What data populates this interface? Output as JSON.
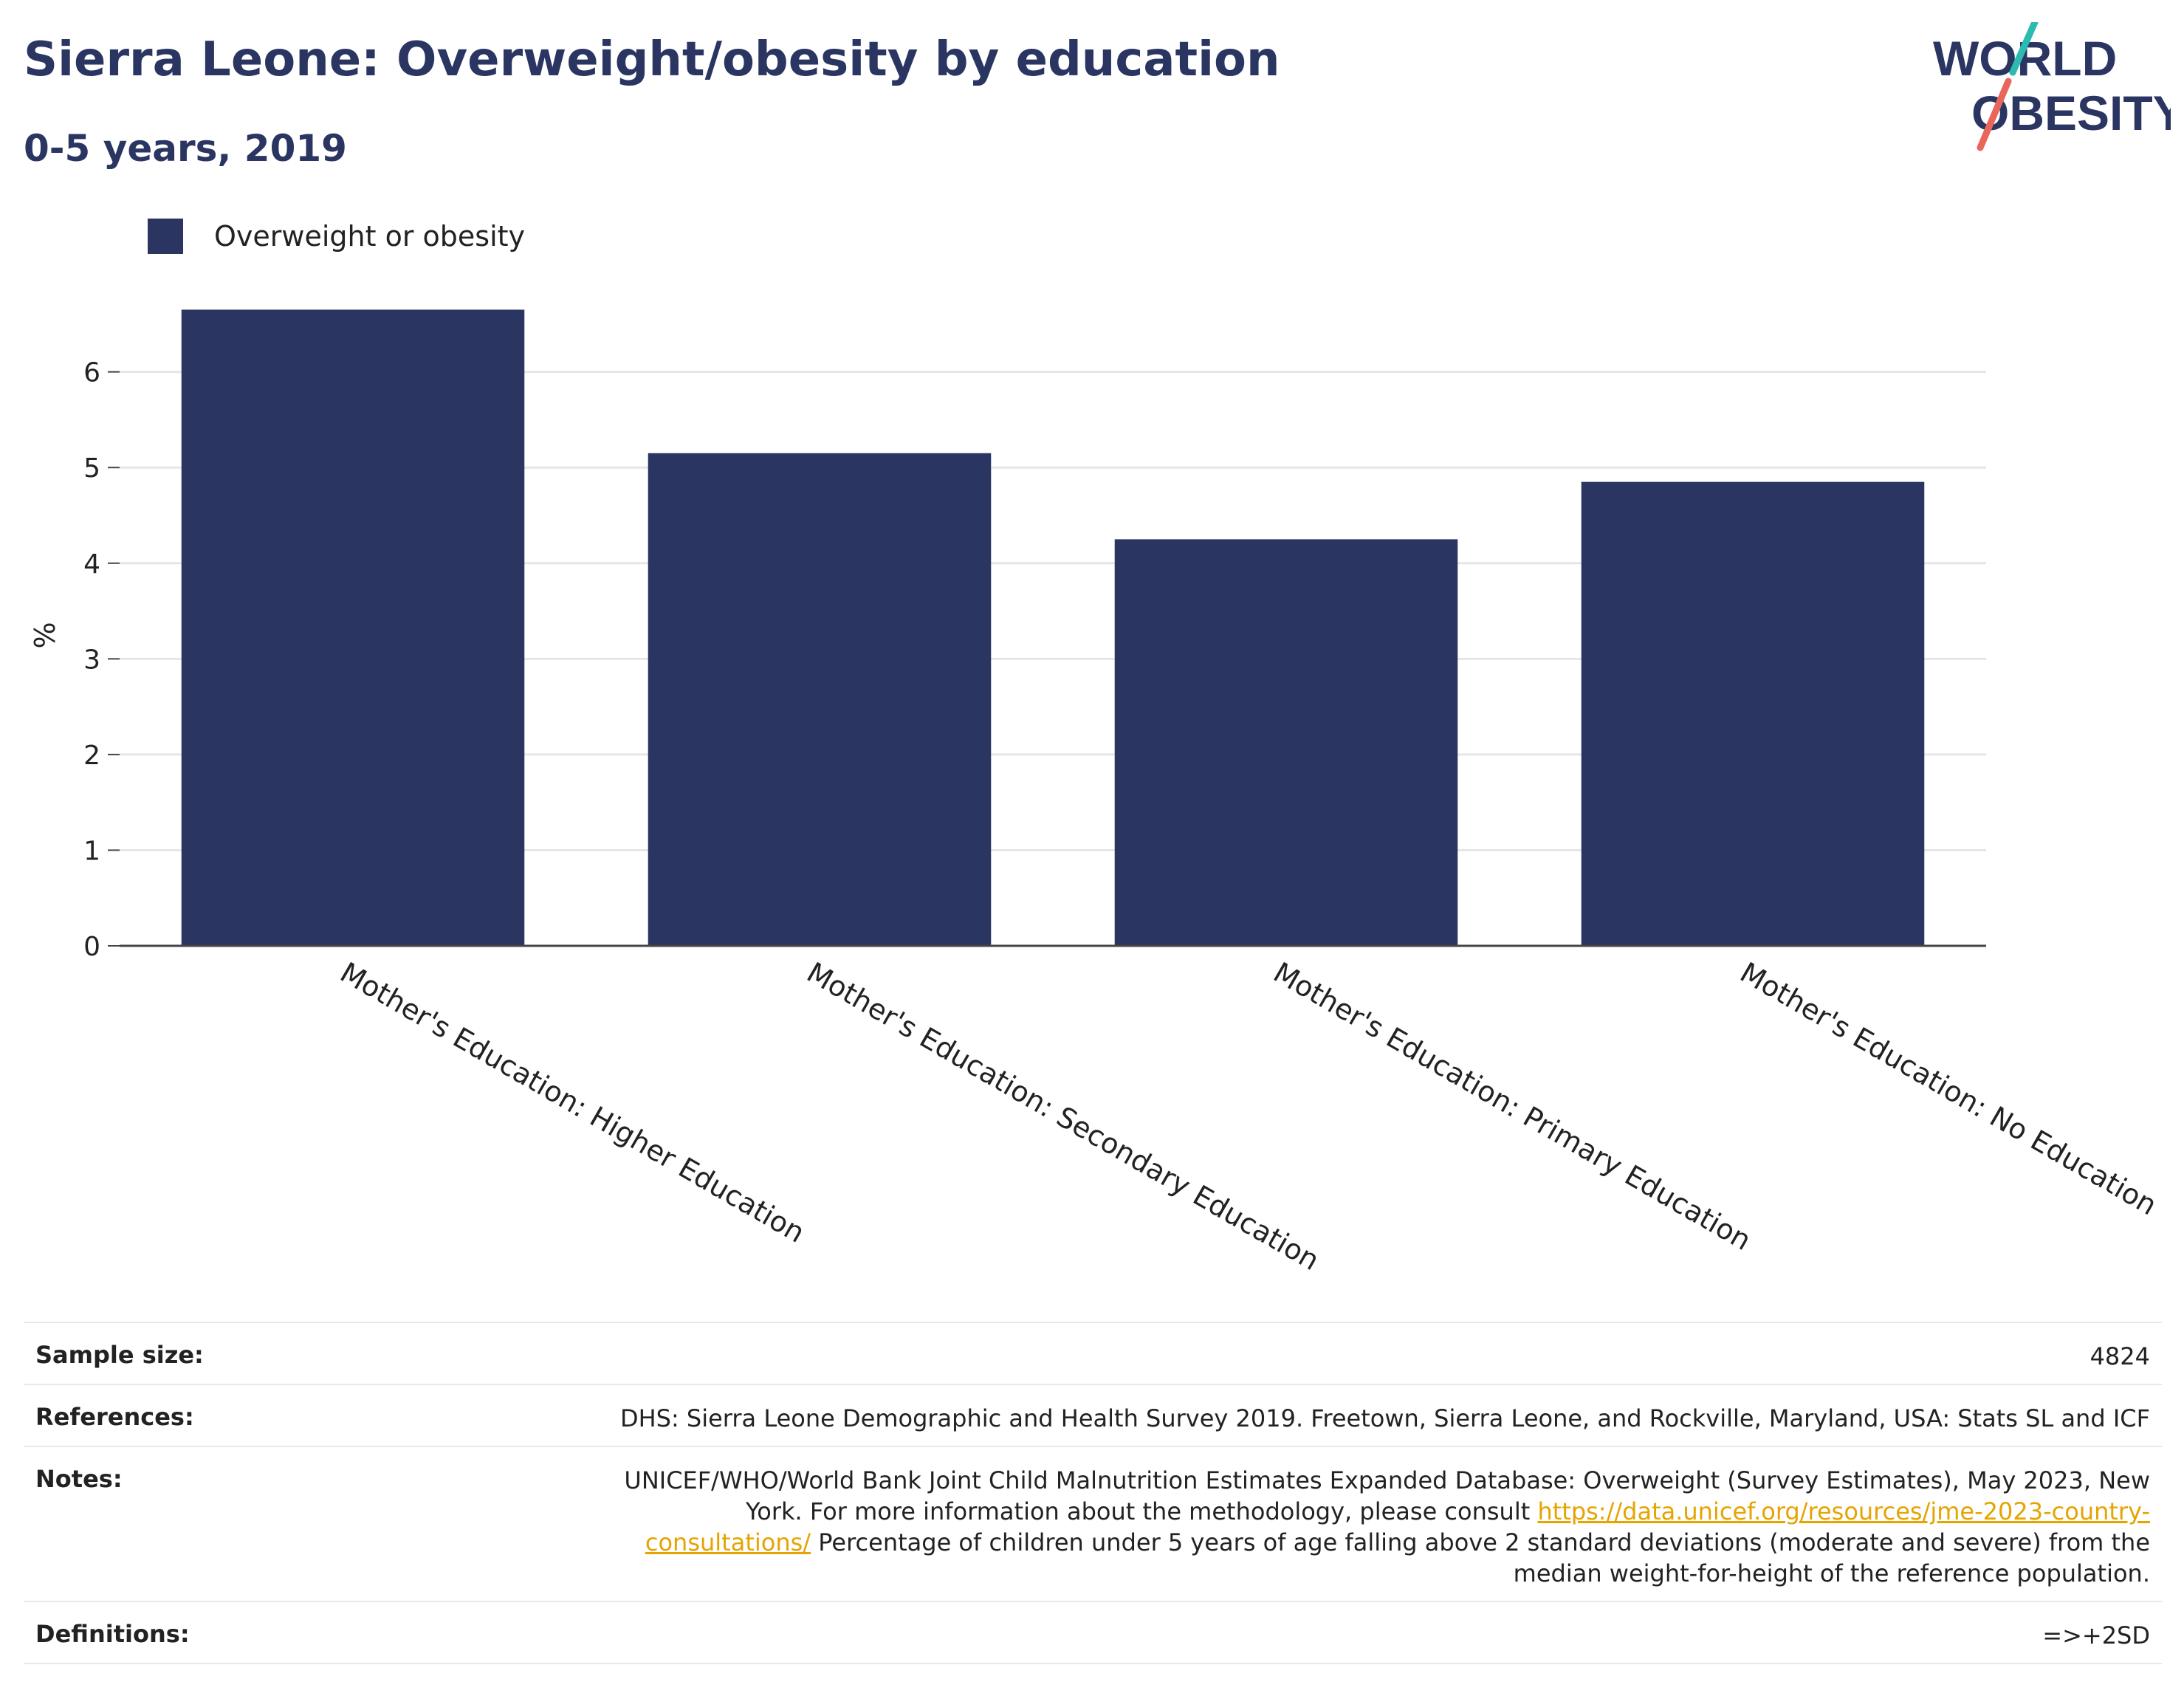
{
  "header": {
    "title": "Sierra Leone: Overweight/obesity by education",
    "subtitle": "0-5 years, 2019"
  },
  "logo": {
    "line1": "WORLD",
    "line2": "OBESITY",
    "colors": {
      "text": "#2a3562",
      "slash_top": "#2bbbb0",
      "slash_bottom": "#e8675a"
    }
  },
  "legend": {
    "label": "Overweight or obesity",
    "color": "#2a3562"
  },
  "chart_data": {
    "type": "bar",
    "title": "Sierra Leone: Overweight/obesity by education",
    "subtitle": "0-5 years, 2019",
    "categories": [
      "Mother's Education: Higher Education",
      "Mother's Education: Secondary Education",
      "Mother's Education: Primary Education",
      "Mother's Education: No Education"
    ],
    "series": [
      {
        "name": "Overweight or obesity",
        "values": [
          6.65,
          5.15,
          4.25,
          4.85
        ],
        "color": "#2a3562"
      }
    ],
    "xlabel": "",
    "ylabel": "%",
    "ylim": [
      0,
      6.8
    ],
    "yticks": [
      0,
      1,
      2,
      3,
      4,
      5,
      6
    ],
    "grid": true,
    "legend_position": "top-left"
  },
  "info": {
    "sample_size_label": "Sample size:",
    "sample_size_value": "4824",
    "references_label": "References:",
    "references_value": "DHS: Sierra Leone Demographic and Health Survey 2019. Freetown, Sierra Leone, and Rockville, Maryland, USA: Stats SL and ICF",
    "notes_label": "Notes:",
    "notes_text_1": "UNICEF/WHO/World Bank Joint Child Malnutrition Estimates Expanded Database: Overweight (Survey Estimates), May 2023, New York. For more information about the methodology, please consult ",
    "notes_link": "https://data.unicef.org/resources/jme-2023-country-consultations/",
    "notes_text_2": " Percentage of children under 5 years of age falling above 2 standard deviations (moderate and severe) from the median weight-for-height of the reference population.",
    "definitions_label": "Definitions:",
    "definitions_value": "=>+2SD",
    "link_color": "#e5a400"
  }
}
